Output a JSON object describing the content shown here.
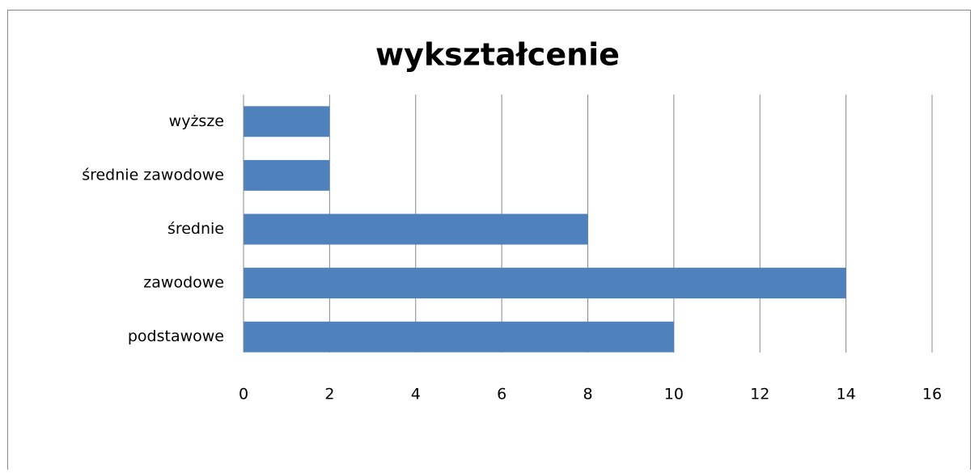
{
  "chart_data": {
    "type": "bar",
    "orientation": "horizontal",
    "title": "wykształcenie",
    "categories": [
      "wyższe",
      "średnie zawodowe",
      "średnie",
      "zawodowe",
      "podstawowe"
    ],
    "values": [
      2,
      2,
      8,
      14,
      10
    ],
    "color": "#4f81bd",
    "xlim": [
      0,
      16
    ],
    "xticks": [
      0,
      2,
      4,
      6,
      8,
      10,
      12,
      14,
      16
    ],
    "grid": true
  }
}
